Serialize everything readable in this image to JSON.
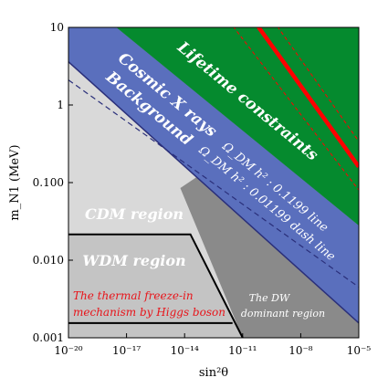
{
  "chart_data": {
    "type": "area",
    "xlabel": "sin²θ",
    "ylabel": "m_N1 (MeV)",
    "xscale": "log",
    "yscale": "log",
    "xlim": [
      1e-20,
      1e-05
    ],
    "ylim": [
      0.001,
      10
    ],
    "x_ticks": [
      {
        "value": 1e-20,
        "label": "10⁻²⁰"
      },
      {
        "value": 1e-17,
        "label": "10⁻¹⁷"
      },
      {
        "value": 1e-14,
        "label": "10⁻¹⁴"
      },
      {
        "value": 1e-11,
        "label": "10⁻¹¹"
      },
      {
        "value": 1e-08,
        "label": "10⁻⁸"
      },
      {
        "value": 1e-05,
        "label": "10⁻⁵"
      }
    ],
    "y_ticks": [
      {
        "value": 0.001,
        "label": "0.001"
      },
      {
        "value": 0.01,
        "label": "0.010"
      },
      {
        "value": 0.1,
        "label": "0.100"
      },
      {
        "value": 1,
        "label": "1"
      },
      {
        "value": 10,
        "label": "10"
      }
    ],
    "regions": [
      {
        "label": "Lifetime constraints",
        "color": "#058a2e"
      },
      {
        "label_lines": [
          "Cosmic X rays",
          "Background"
        ],
        "color": "#5a6fbd"
      },
      {
        "label": "CDM region",
        "color": "#d8d8d8"
      },
      {
        "label": "WDM region",
        "color": "#c4c4c4"
      },
      {
        "label_lines": [
          "The DW",
          "dominant region"
        ],
        "color": "#8a8a8a"
      },
      {
        "label_lines": [
          "The thermal freeze-in",
          "mechanism by Higgs boson"
        ],
        "color": "#e8141a"
      }
    ],
    "lines": [
      {
        "label": "Ω_DM h² : 0.1199 line",
        "style": "solid",
        "color": "#2a2f7a"
      },
      {
        "label": "Ω_DM h² : 0.01199 dash line",
        "style": "dashed",
        "color": "#2a2f7a"
      }
    ],
    "lifetime_lines_color": "#ff0000",
    "grid": false
  }
}
